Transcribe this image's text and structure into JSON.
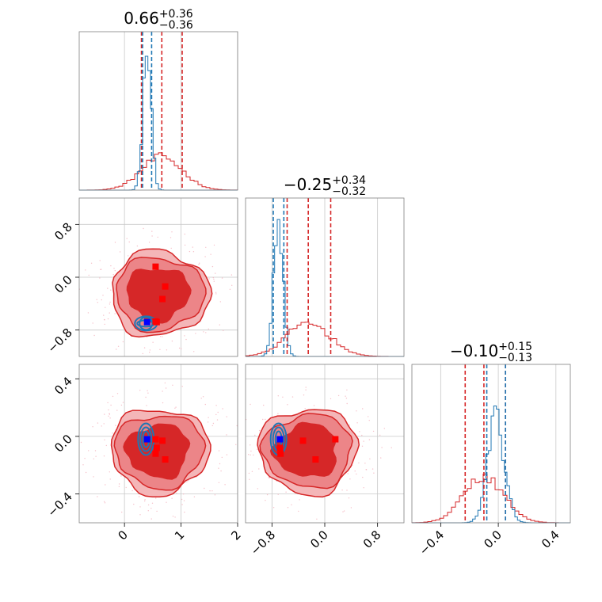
{
  "chart_data": {
    "type": "corner",
    "colors": {
      "samples": "#d62728",
      "samples_fill_outer": "#f4b6b8",
      "samples_fill_mid": "#ec8588",
      "samples_fill_inner": "#d62728",
      "reference": "#1f77b4",
      "truth": "#0000ff",
      "points": "#ff0000",
      "grid": "#c8c8c8"
    },
    "grid": true,
    "parameters": [
      {
        "id": "p0",
        "title": "0.66",
        "err_plus": "+0.36",
        "err_minus": "−0.36",
        "range": [
          -0.8,
          2.0
        ],
        "ticks": [
          "0",
          "1",
          "2"
        ],
        "tick_values": [
          0,
          1,
          2
        ]
      },
      {
        "id": "p1",
        "title": "−0.25",
        "err_plus": "+0.34",
        "err_minus": "−0.32",
        "range": [
          -1.2,
          1.2
        ],
        "ticks": [
          "−0.8",
          "0.0",
          "0.8"
        ],
        "tick_values": [
          -0.8,
          0.0,
          0.8
        ]
      },
      {
        "id": "p2",
        "title": "−0.10",
        "err_plus": "+0.15",
        "err_minus": "−0.13",
        "range": [
          -0.6,
          0.5
        ],
        "ticks": [
          "−0.4",
          "0.0",
          "0.4"
        ],
        "tick_values": [
          -0.4,
          0.0,
          0.4
        ]
      }
    ],
    "quantile_lines": {
      "samples": [
        [
          0.3,
          0.66,
          1.02
        ],
        [
          -0.57,
          -0.25,
          0.09
        ],
        [
          -0.23,
          -0.1,
          0.05
        ]
      ],
      "reference": [
        [
          0.32,
          0.48
        ],
        [
          -0.78,
          -0.62
        ],
        [
          -0.08,
          0.05
        ]
      ]
    },
    "contour_centers": {
      "samples": [
        {
          "x": 0.62,
          "y": -0.25,
          "z": -0.1
        }
      ],
      "reference": [
        {
          "x": 0.38,
          "y": -0.7,
          "z": -0.02
        }
      ]
    },
    "truth": {
      "x": 0.4,
      "y": -0.68,
      "z": -0.02
    },
    "points": [
      {
        "x": 0.55,
        "y": 0.16,
        "z": -0.02
      },
      {
        "x": 0.72,
        "y": -0.14,
        "z": -0.16
      },
      {
        "x": 0.67,
        "y": -0.33,
        "z": -0.03
      },
      {
        "x": 0.55,
        "y": -0.67,
        "z": -0.12
      },
      {
        "x": 0.57,
        "y": -0.68,
        "z": -0.08
      }
    ]
  }
}
